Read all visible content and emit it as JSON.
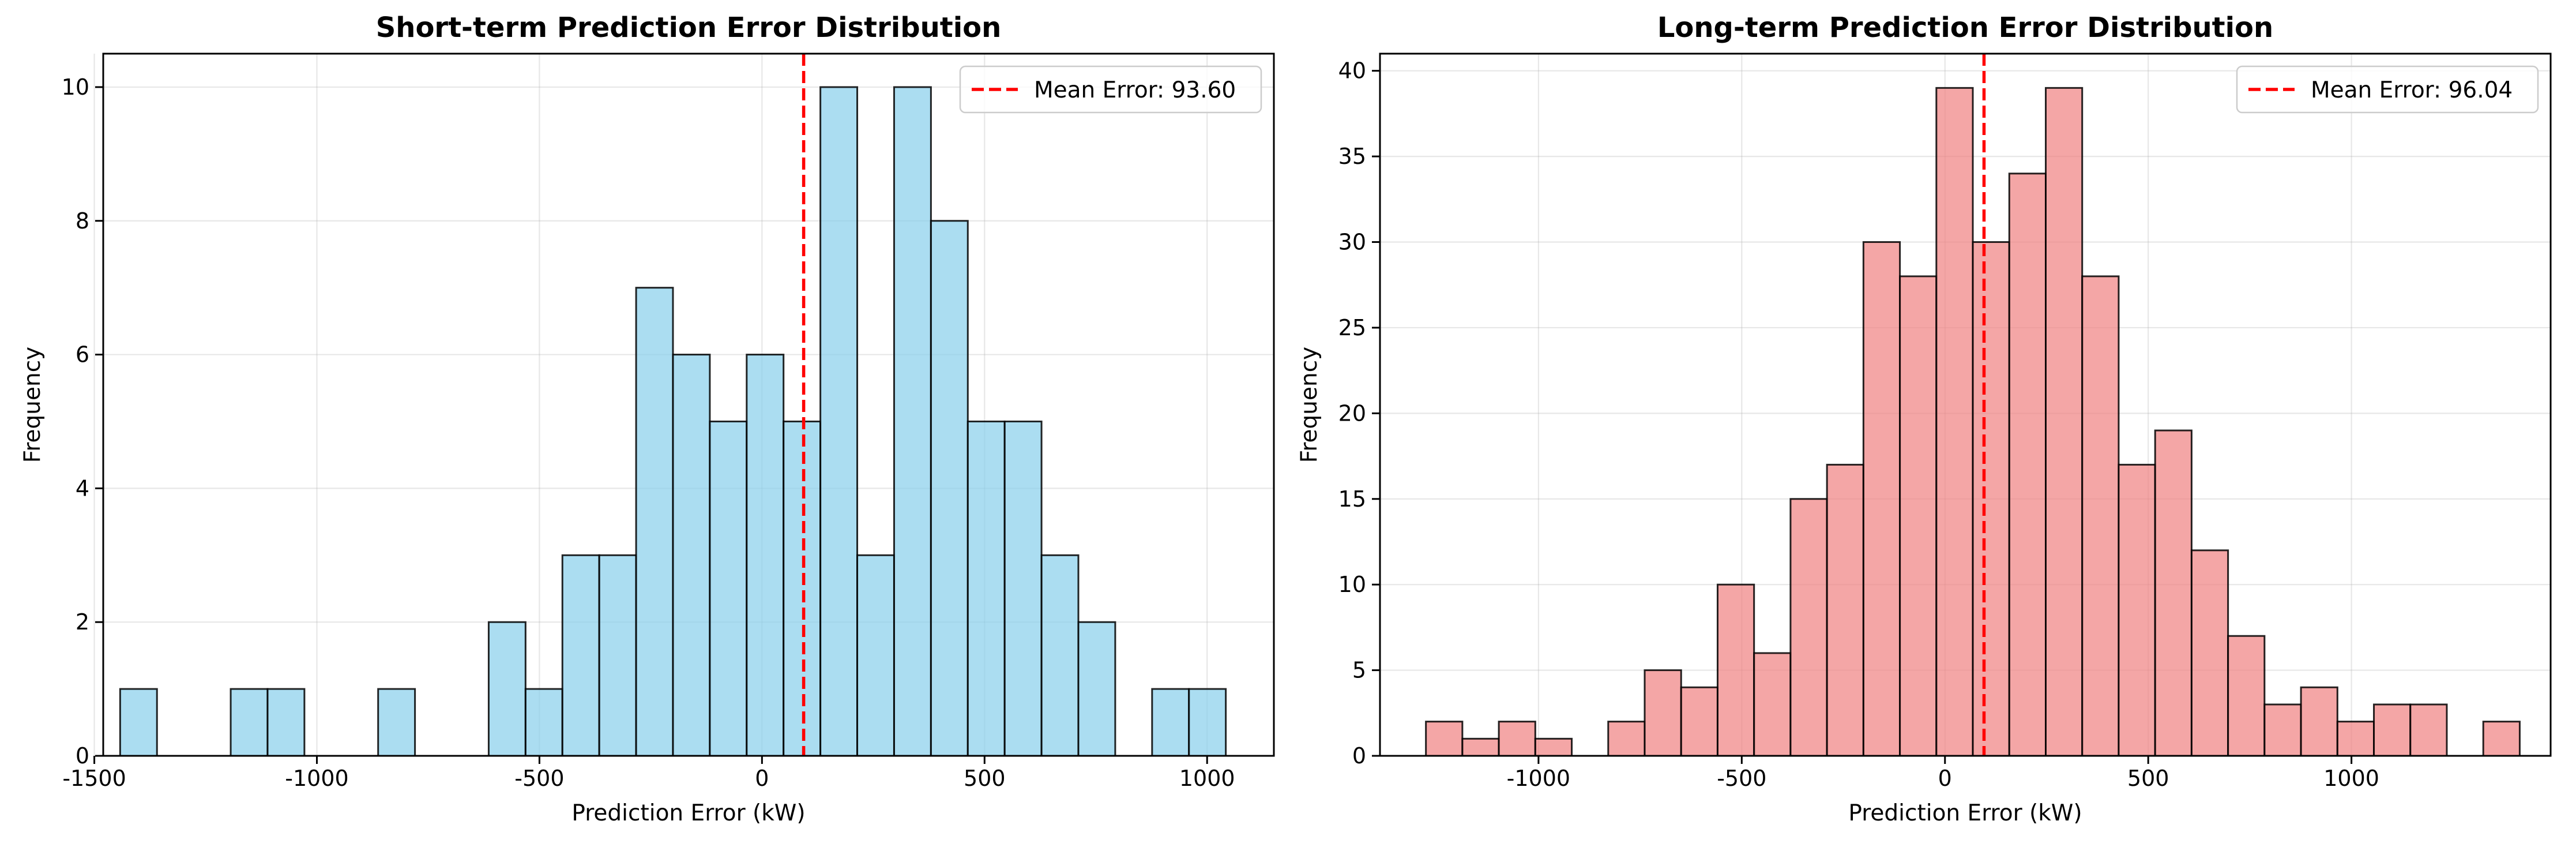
{
  "chart_data": [
    {
      "type": "histogram",
      "title": "Short-term Prediction Error Distribution",
      "xlabel": "Prediction Error (kW)",
      "ylabel": "Frequency",
      "xlim": [
        -1480,
        1150
      ],
      "ylim": [
        0,
        10.5
      ],
      "xticks": [
        -1500,
        -1000,
        -500,
        0,
        500,
        1000
      ],
      "xtick_labels": [
        "-1500",
        "-1000",
        "-500",
        "0",
        "500",
        "1000"
      ],
      "yticks": [
        0,
        2,
        4,
        6,
        8,
        10
      ],
      "ytick_labels": [
        "0",
        "2",
        "4",
        "6",
        "8",
        "10"
      ],
      "grid": true,
      "bin_start": -1442,
      "bin_width": 82.8,
      "counts": [
        1,
        0,
        0,
        1,
        1,
        0,
        0,
        1,
        0,
        0,
        2,
        1,
        3,
        3,
        7,
        6,
        5,
        6,
        5,
        10,
        3,
        10,
        8,
        5,
        5,
        3,
        2,
        0,
        1,
        1
      ],
      "bar_color": "#87CEEB",
      "edge_color": "#000000",
      "mean_line": {
        "value": 93.6,
        "label": "Mean Error: 93.60",
        "color": "#ff0000"
      },
      "legend_position": "upper right"
    },
    {
      "type": "histogram",
      "title": "Long-term Prediction Error Distribution",
      "xlabel": "Prediction Error (kW)",
      "ylabel": "Frequency",
      "xlim": [
        -1390,
        1490
      ],
      "ylim": [
        0,
        41
      ],
      "xticks": [
        -1000,
        -500,
        0,
        500,
        1000
      ],
      "xtick_labels": [
        "-1000",
        "-500",
        "0",
        "500",
        "1000"
      ],
      "yticks": [
        0,
        5,
        10,
        15,
        20,
        25,
        30,
        35,
        40
      ],
      "ytick_labels": [
        "0",
        "5",
        "10",
        "15",
        "20",
        "25",
        "30",
        "35",
        "40"
      ],
      "grid": true,
      "bin_start": -1277,
      "bin_width": 89.7,
      "counts": [
        2,
        1,
        2,
        1,
        0,
        2,
        5,
        4,
        10,
        6,
        15,
        17,
        30,
        28,
        39,
        30,
        34,
        39,
        28,
        17,
        19,
        12,
        7,
        3,
        4,
        2,
        3,
        3,
        0,
        2
      ],
      "bar_color": "#F08080",
      "edge_color": "#000000",
      "mean_line": {
        "value": 96.04,
        "label": "Mean Error: 96.04",
        "color": "#ff0000"
      },
      "legend_position": "upper right"
    }
  ]
}
